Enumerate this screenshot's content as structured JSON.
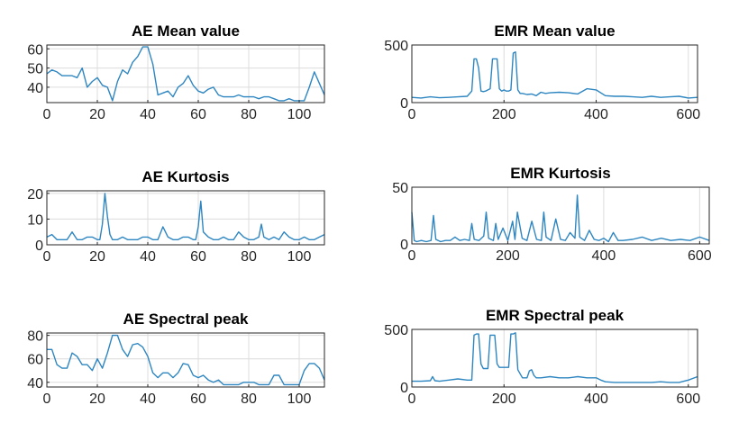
{
  "chart_data": [
    {
      "type": "line",
      "title": "AE Mean value",
      "xlim": [
        0,
        110
      ],
      "ylim": [
        32,
        62
      ],
      "xticks": [
        0,
        20,
        40,
        60,
        80,
        100
      ],
      "yticks": [
        40,
        50,
        60
      ],
      "grid": true,
      "color": "#2e86c1",
      "series": [
        {
          "x": [
            0,
            2,
            4,
            6,
            8,
            10,
            12,
            14,
            16,
            18,
            20,
            22,
            24,
            26,
            28,
            30,
            32,
            34,
            36,
            38,
            40,
            42,
            44,
            46,
            48,
            50,
            52,
            54,
            56,
            58,
            60,
            62,
            64,
            66,
            68,
            70,
            72,
            74,
            76,
            78,
            80,
            82,
            84,
            86,
            88,
            90,
            92,
            94,
            96,
            98,
            100,
            102,
            104,
            106,
            108,
            110
          ],
          "y": [
            47,
            49,
            48,
            46,
            46,
            46,
            45,
            50,
            40,
            43,
            45,
            41,
            40,
            33,
            43,
            49,
            47,
            53,
            56,
            61,
            61,
            52,
            36,
            37,
            38,
            35,
            40,
            42,
            46,
            41,
            38,
            37,
            39,
            40,
            36,
            35,
            35,
            35,
            36,
            35,
            35,
            35,
            34,
            35,
            35,
            34,
            33,
            33,
            34,
            33,
            33,
            33,
            40,
            48,
            42,
            36
          ]
        }
      ]
    },
    {
      "type": "line",
      "title": "EMR Mean value",
      "xlim": [
        0,
        620
      ],
      "ylim": [
        0,
        500
      ],
      "xticks": [
        0,
        200,
        400,
        600
      ],
      "yticks": [
        0,
        500
      ],
      "grid": true,
      "color": "#2e86c1",
      "series": [
        {
          "x": [
            0,
            20,
            40,
            60,
            80,
            100,
            120,
            130,
            135,
            140,
            145,
            150,
            155,
            160,
            165,
            170,
            175,
            180,
            185,
            190,
            195,
            200,
            205,
            210,
            215,
            220,
            225,
            230,
            235,
            240,
            250,
            260,
            270,
            280,
            290,
            300,
            320,
            340,
            360,
            380,
            400,
            420,
            440,
            460,
            480,
            500,
            520,
            540,
            560,
            580,
            600,
            620
          ],
          "y": [
            45,
            40,
            50,
            42,
            45,
            50,
            55,
            100,
            380,
            380,
            300,
            100,
            95,
            100,
            110,
            120,
            380,
            380,
            380,
            120,
            100,
            110,
            100,
            100,
            110,
            430,
            440,
            110,
            80,
            80,
            70,
            75,
            60,
            90,
            80,
            85,
            90,
            85,
            75,
            120,
            110,
            60,
            55,
            55,
            50,
            45,
            55,
            45,
            50,
            55,
            40,
            45
          ]
        }
      ]
    },
    {
      "type": "line",
      "title": "AE Kurtosis",
      "xlim": [
        0,
        110
      ],
      "ylim": [
        0,
        21
      ],
      "xticks": [
        0,
        20,
        40,
        60,
        80,
        100
      ],
      "yticks": [
        0,
        10,
        20
      ],
      "grid": true,
      "color": "#2e86c1",
      "series": [
        {
          "x": [
            0,
            2,
            4,
            6,
            8,
            10,
            12,
            14,
            16,
            18,
            20,
            21,
            22,
            23,
            24,
            25,
            26,
            28,
            30,
            32,
            34,
            36,
            38,
            40,
            42,
            44,
            46,
            48,
            50,
            52,
            54,
            56,
            58,
            59,
            60,
            61,
            62,
            64,
            66,
            68,
            70,
            72,
            74,
            76,
            78,
            80,
            82,
            84,
            85,
            86,
            88,
            90,
            92,
            94,
            96,
            98,
            100,
            102,
            104,
            106,
            108,
            110
          ],
          "y": [
            3,
            4,
            2,
            2,
            2,
            5,
            2,
            2,
            3,
            3,
            2,
            2,
            8,
            20,
            11,
            4,
            2,
            2,
            3,
            2,
            2,
            2,
            3,
            3,
            2,
            2,
            7,
            3,
            2,
            2,
            3,
            3,
            2,
            2,
            7,
            17,
            5,
            3,
            2,
            2,
            3,
            2,
            2,
            5,
            3,
            2,
            2,
            3,
            8,
            3,
            2,
            3,
            2,
            5,
            3,
            2,
            2,
            3,
            2,
            2,
            3,
            4
          ]
        }
      ]
    },
    {
      "type": "line",
      "title": "EMR Kurtosis",
      "xlim": [
        0,
        620
      ],
      "ylim": [
        0,
        50
      ],
      "xticks": [
        0,
        200,
        400,
        600
      ],
      "yticks": [
        0,
        50
      ],
      "grid": true,
      "color": "#2e86c1",
      "series": [
        {
          "x": [
            0,
            5,
            10,
            20,
            30,
            40,
            45,
            50,
            60,
            70,
            80,
            90,
            100,
            110,
            120,
            125,
            130,
            140,
            150,
            155,
            160,
            170,
            175,
            180,
            190,
            200,
            210,
            215,
            220,
            230,
            240,
            250,
            260,
            270,
            275,
            280,
            290,
            300,
            310,
            320,
            330,
            340,
            345,
            350,
            360,
            370,
            380,
            390,
            400,
            410,
            420,
            430,
            440,
            460,
            480,
            500,
            520,
            540,
            560,
            580,
            600,
            620
          ],
          "y": [
            28,
            3,
            2,
            3,
            2,
            3,
            25,
            4,
            2,
            3,
            3,
            6,
            3,
            4,
            3,
            18,
            4,
            3,
            7,
            28,
            5,
            3,
            18,
            4,
            14,
            3,
            20,
            4,
            28,
            5,
            3,
            20,
            4,
            3,
            28,
            6,
            3,
            22,
            4,
            3,
            10,
            5,
            43,
            6,
            3,
            12,
            4,
            3,
            5,
            2,
            10,
            3,
            3,
            4,
            6,
            3,
            5,
            3,
            4,
            3,
            6,
            3
          ]
        }
      ]
    },
    {
      "type": "line",
      "title": "AE Spectral peak",
      "xlim": [
        0,
        110
      ],
      "ylim": [
        36,
        82
      ],
      "xticks": [
        0,
        20,
        40,
        60,
        80,
        100
      ],
      "yticks": [
        40,
        60,
        80
      ],
      "grid": true,
      "color": "#2e86c1",
      "series": [
        {
          "x": [
            0,
            2,
            4,
            6,
            8,
            10,
            12,
            14,
            16,
            18,
            20,
            22,
            24,
            26,
            28,
            30,
            32,
            34,
            36,
            38,
            40,
            42,
            44,
            46,
            48,
            50,
            52,
            54,
            56,
            58,
            60,
            62,
            64,
            66,
            68,
            70,
            72,
            74,
            76,
            78,
            80,
            82,
            84,
            86,
            88,
            90,
            92,
            94,
            96,
            98,
            100,
            102,
            104,
            106,
            108,
            110
          ],
          "y": [
            68,
            68,
            55,
            52,
            52,
            65,
            62,
            55,
            55,
            50,
            60,
            52,
            65,
            80,
            80,
            68,
            62,
            72,
            73,
            70,
            62,
            48,
            44,
            48,
            48,
            44,
            48,
            56,
            55,
            46,
            44,
            46,
            42,
            40,
            42,
            38,
            38,
            38,
            38,
            40,
            40,
            40,
            38,
            38,
            38,
            46,
            46,
            38,
            38,
            38,
            38,
            50,
            56,
            56,
            52,
            42
          ]
        }
      ]
    },
    {
      "type": "line",
      "title": "EMR Spectral peak",
      "xlim": [
        0,
        620
      ],
      "ylim": [
        0,
        500
      ],
      "xticks": [
        0,
        200,
        400,
        600
      ],
      "yticks": [
        0,
        500
      ],
      "grid": true,
      "color": "#2e86c1",
      "series": [
        {
          "x": [
            0,
            20,
            40,
            45,
            50,
            60,
            80,
            100,
            120,
            125,
            130,
            135,
            140,
            145,
            150,
            155,
            160,
            165,
            170,
            175,
            180,
            185,
            190,
            195,
            200,
            205,
            210,
            215,
            220,
            225,
            230,
            240,
            250,
            255,
            260,
            265,
            270,
            280,
            300,
            320,
            340,
            360,
            380,
            400,
            410,
            420,
            440,
            460,
            480,
            500,
            520,
            540,
            560,
            580,
            600,
            620
          ],
          "y": [
            50,
            50,
            55,
            90,
            55,
            50,
            60,
            70,
            60,
            60,
            60,
            450,
            460,
            460,
            200,
            160,
            160,
            160,
            450,
            450,
            450,
            200,
            170,
            170,
            170,
            170,
            170,
            460,
            460,
            470,
            150,
            80,
            80,
            140,
            150,
            100,
            80,
            80,
            90,
            80,
            80,
            90,
            80,
            80,
            60,
            45,
            40,
            40,
            40,
            40,
            40,
            45,
            40,
            40,
            60,
            90
          ]
        }
      ]
    }
  ]
}
